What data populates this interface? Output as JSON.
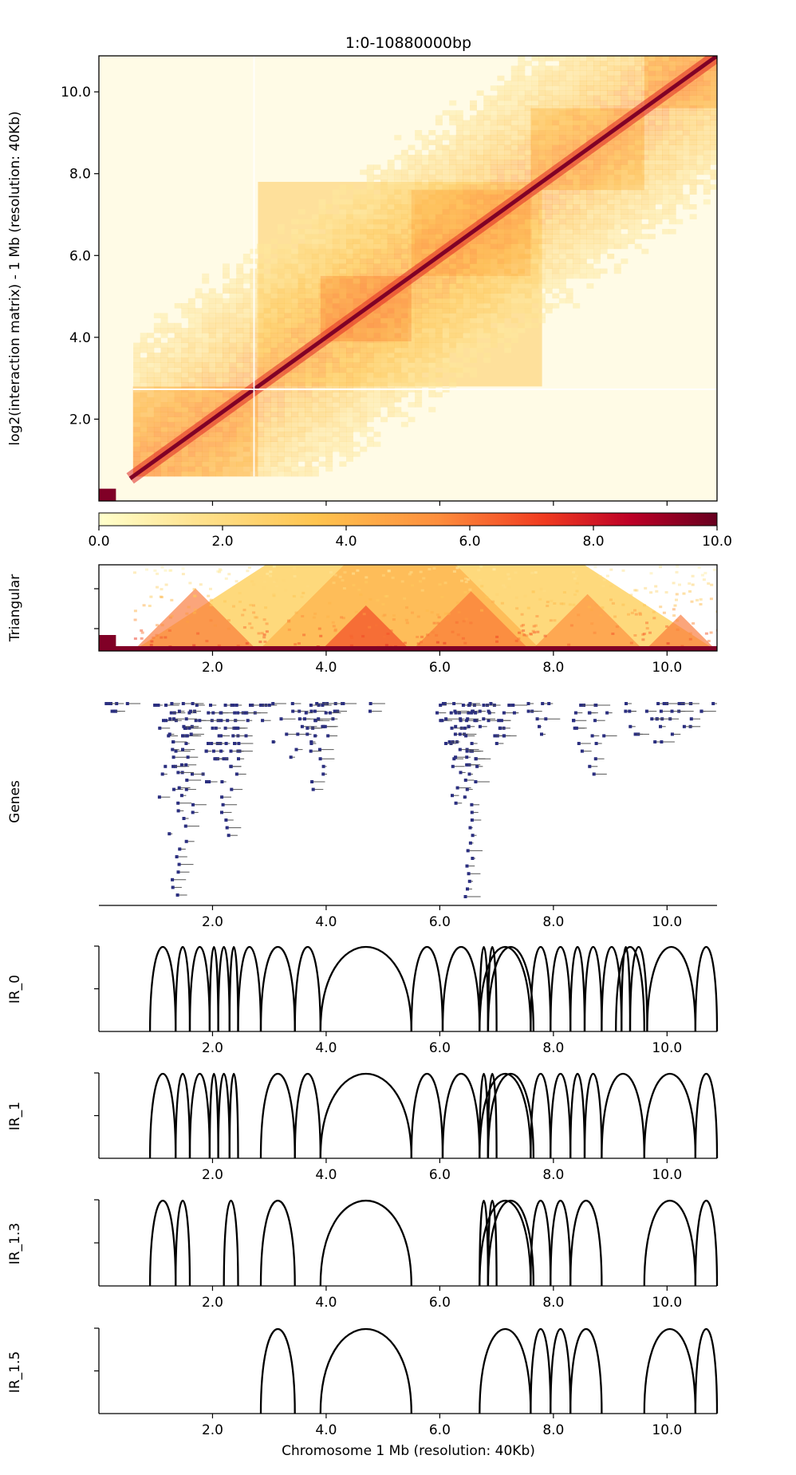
{
  "title": "1:0-10880000bp",
  "colors": {
    "colormap": [
      "#ffffcc",
      "#fee391",
      "#fec44f",
      "#fd8d3c",
      "#f03b20",
      "#bd0026",
      "#67001f"
    ],
    "diagonal": "#800026",
    "gene_marks": "#2b2f80",
    "arc_line": "#000000"
  },
  "chart_data": [
    {
      "type": "heatmap",
      "name": "hic-matrix",
      "ylabel": "log2(interaction matrix) - 1 Mb (resolution: 40Kb)",
      "xlim": [
        0,
        10.88
      ],
      "ylim": [
        0,
        10.88
      ],
      "yticks": [
        "2.0",
        "4.0",
        "6.0",
        "8.0",
        "10.0"
      ],
      "colorbar": {
        "range": [
          0,
          10
        ],
        "ticks": [
          "0.0",
          "2.0",
          "4.0",
          "6.0",
          "8.0",
          "10.0"
        ]
      },
      "domains": [
        {
          "start": 0.6,
          "end": 2.8,
          "intensity": 0.45
        },
        {
          "start": 2.8,
          "end": 7.8,
          "intensity": 0.3
        },
        {
          "start": 3.9,
          "end": 5.5,
          "intensity": 0.55
        },
        {
          "start": 5.5,
          "end": 7.6,
          "intensity": 0.45
        },
        {
          "start": 7.6,
          "end": 9.6,
          "intensity": 0.4
        },
        {
          "start": 9.6,
          "end": 10.88,
          "intensity": 0.45
        }
      ]
    },
    {
      "type": "heatmap",
      "name": "triangular",
      "label": "Triangular",
      "xlim": [
        0,
        10.88
      ],
      "xticks": [
        "2.0",
        "4.0",
        "6.0",
        "8.0",
        "10.0"
      ]
    },
    {
      "type": "scatter",
      "name": "genes",
      "label": "Genes",
      "xlim": [
        0,
        10.88
      ],
      "xticks": [
        "2.0",
        "4.0",
        "6.0",
        "8.0",
        "10.0"
      ],
      "clusters": [
        {
          "start": 0.05,
          "end": 0.8,
          "rows": 2
        },
        {
          "start": 0.9,
          "end": 3.0,
          "rows": 15
        },
        {
          "start": 1.2,
          "end": 1.7,
          "rows": 28
        },
        {
          "start": 2.1,
          "end": 2.6,
          "rows": 18
        },
        {
          "start": 3.0,
          "end": 4.3,
          "rows": 8
        },
        {
          "start": 3.6,
          "end": 4.1,
          "rows": 12
        },
        {
          "start": 4.7,
          "end": 4.9,
          "rows": 2
        },
        {
          "start": 5.9,
          "end": 7.5,
          "rows": 9
        },
        {
          "start": 6.0,
          "end": 6.9,
          "rows": 14
        },
        {
          "start": 6.4,
          "end": 6.7,
          "rows": 28
        },
        {
          "start": 7.5,
          "end": 8.0,
          "rows": 5
        },
        {
          "start": 8.3,
          "end": 9.0,
          "rows": 10
        },
        {
          "start": 9.2,
          "end": 10.88,
          "rows": 6
        }
      ]
    },
    {
      "type": "line",
      "name": "IR_0",
      "label": "IR_0",
      "xlim": [
        0,
        10.88
      ],
      "xticks": [
        "2.0",
        "4.0",
        "6.0",
        "8.0",
        "10.0"
      ],
      "arcs": [
        [
          0.9,
          1.35
        ],
        [
          1.35,
          1.6
        ],
        [
          1.6,
          1.95
        ],
        [
          1.95,
          2.1
        ],
        [
          2.1,
          2.3
        ],
        [
          2.3,
          2.45
        ],
        [
          2.45,
          2.85
        ],
        [
          2.85,
          3.45
        ],
        [
          3.45,
          3.9
        ],
        [
          3.9,
          5.5
        ],
        [
          5.5,
          6.05
        ],
        [
          6.05,
          6.7
        ],
        [
          6.7,
          6.85
        ],
        [
          6.85,
          7.0
        ],
        [
          6.7,
          7.6
        ],
        [
          6.85,
          7.65
        ],
        [
          7.6,
          7.95
        ],
        [
          7.95,
          8.3
        ],
        [
          8.3,
          8.55
        ],
        [
          8.55,
          8.85
        ],
        [
          8.85,
          9.2
        ],
        [
          9.2,
          9.35
        ],
        [
          9.1,
          9.6
        ],
        [
          9.35,
          9.65
        ],
        [
          9.65,
          10.5
        ],
        [
          10.5,
          10.88
        ]
      ]
    },
    {
      "type": "line",
      "name": "IR_1",
      "label": "IR_1",
      "xlim": [
        0,
        10.88
      ],
      "xticks": [
        "2.0",
        "4.0",
        "6.0",
        "8.0",
        "10.0"
      ],
      "arcs": [
        [
          0.9,
          1.35
        ],
        [
          1.35,
          1.6
        ],
        [
          1.6,
          1.95
        ],
        [
          1.95,
          2.1
        ],
        [
          2.1,
          2.3
        ],
        [
          2.3,
          2.45
        ],
        [
          2.85,
          3.45
        ],
        [
          3.45,
          3.9
        ],
        [
          3.9,
          5.5
        ],
        [
          5.5,
          6.05
        ],
        [
          6.05,
          6.7
        ],
        [
          6.7,
          6.85
        ],
        [
          6.85,
          7.0
        ],
        [
          6.7,
          7.6
        ],
        [
          6.85,
          7.65
        ],
        [
          7.6,
          7.95
        ],
        [
          7.95,
          8.3
        ],
        [
          8.3,
          8.55
        ],
        [
          8.55,
          8.85
        ],
        [
          8.85,
          9.6
        ],
        [
          9.6,
          10.5
        ],
        [
          10.5,
          10.88
        ]
      ]
    },
    {
      "type": "line",
      "name": "IR_1.3",
      "label": "IR_1.3",
      "xlim": [
        0,
        10.88
      ],
      "xticks": [
        "2.0",
        "4.0",
        "6.0",
        "8.0",
        "10.0"
      ],
      "arcs": [
        [
          0.9,
          1.35
        ],
        [
          1.35,
          1.6
        ],
        [
          2.2,
          2.45
        ],
        [
          2.85,
          3.45
        ],
        [
          3.9,
          5.5
        ],
        [
          6.7,
          6.85
        ],
        [
          6.85,
          7.0
        ],
        [
          6.7,
          7.6
        ],
        [
          6.85,
          7.65
        ],
        [
          7.6,
          7.95
        ],
        [
          7.95,
          8.3
        ],
        [
          8.3,
          8.85
        ],
        [
          9.6,
          10.5
        ],
        [
          10.5,
          10.88
        ]
      ]
    },
    {
      "type": "line",
      "name": "IR_1.5",
      "label": "IR_1.5",
      "xlabel": "Chromosome 1 Mb (resolution: 40Kb)",
      "xlim": [
        0,
        10.88
      ],
      "xticks": [
        "2.0",
        "4.0",
        "6.0",
        "8.0",
        "10.0"
      ],
      "arcs": [
        [
          2.85,
          3.45
        ],
        [
          3.9,
          5.5
        ],
        [
          6.7,
          7.6
        ],
        [
          7.6,
          7.95
        ],
        [
          7.95,
          8.3
        ],
        [
          8.3,
          8.85
        ],
        [
          9.6,
          10.5
        ],
        [
          10.5,
          10.88
        ]
      ]
    }
  ]
}
